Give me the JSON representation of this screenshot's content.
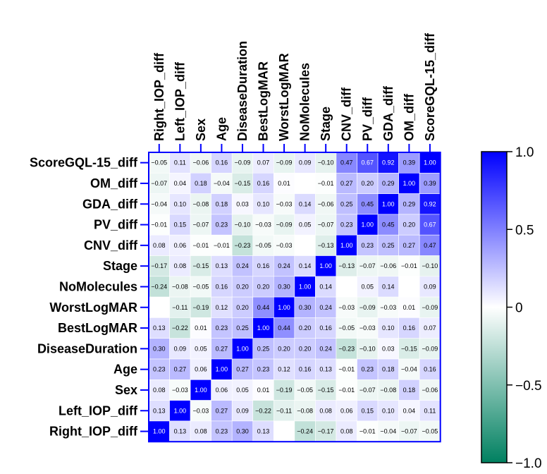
{
  "chart_data": {
    "type": "heatmap",
    "columns": [
      "Right_IOP_diff",
      "Left_IOP_diff",
      "Sex",
      "Age",
      "DiseaseDuration",
      "BestLogMAR",
      "WorstLogMAR",
      "NoMolecules",
      "Stage",
      "CNV_diff",
      "PV_diff",
      "GDA_diff",
      "OM_diff",
      "ScoreGQL-15_diff"
    ],
    "rows": [
      "ScoreGQL-15_diff",
      "OM_diff",
      "GDA_diff",
      "PV_diff",
      "CNV_diff",
      "Stage",
      "NoMolecules",
      "WorstLogMAR",
      "BestLogMAR",
      "DiseaseDuration",
      "Age",
      "Sex",
      "Left_IOP_diff",
      "Right_IOP_diff"
    ],
    "values": [
      [
        -0.05,
        0.11,
        -0.06,
        0.16,
        -0.09,
        0.07,
        -0.09,
        0.09,
        -0.1,
        0.47,
        0.67,
        0.92,
        0.39,
        1.0
      ],
      [
        -0.07,
        0.04,
        0.18,
        -0.04,
        -0.15,
        0.16,
        0.01,
        null,
        -0.01,
        0.27,
        0.2,
        0.29,
        1.0,
        0.39
      ],
      [
        -0.04,
        0.1,
        -0.08,
        0.18,
        0.03,
        0.1,
        -0.03,
        0.14,
        -0.06,
        0.25,
        0.45,
        1.0,
        0.29,
        0.92
      ],
      [
        -0.01,
        0.15,
        -0.07,
        0.23,
        -0.1,
        -0.03,
        -0.09,
        0.05,
        -0.07,
        0.23,
        1.0,
        0.45,
        0.2,
        0.67
      ],
      [
        0.08,
        0.06,
        -0.01,
        -0.01,
        -0.23,
        -0.05,
        -0.03,
        null,
        -0.13,
        1.0,
        0.23,
        0.25,
        0.27,
        0.47
      ],
      [
        -0.17,
        0.08,
        -0.15,
        0.13,
        0.24,
        0.16,
        0.24,
        0.14,
        1.0,
        -0.13,
        -0.07,
        -0.06,
        -0.01,
        -0.1
      ],
      [
        -0.24,
        -0.08,
        -0.05,
        0.16,
        0.2,
        0.2,
        0.3,
        1.0,
        0.14,
        null,
        0.05,
        0.14,
        null,
        0.09
      ],
      [
        null,
        -0.11,
        -0.19,
        0.12,
        0.2,
        0.44,
        1.0,
        0.3,
        0.24,
        -0.03,
        -0.09,
        -0.03,
        0.01,
        -0.09
      ],
      [
        0.13,
        -0.22,
        0.01,
        0.23,
        0.25,
        1.0,
        0.44,
        0.2,
        0.16,
        -0.05,
        -0.03,
        0.1,
        0.16,
        0.07
      ],
      [
        0.3,
        0.09,
        0.05,
        0.27,
        1.0,
        0.25,
        0.2,
        0.2,
        0.24,
        -0.23,
        -0.1,
        0.03,
        -0.15,
        -0.09
      ],
      [
        0.23,
        0.27,
        0.06,
        1.0,
        0.27,
        0.23,
        0.12,
        0.16,
        0.13,
        -0.01,
        0.23,
        0.18,
        -0.04,
        0.16
      ],
      [
        0.08,
        -0.03,
        1.0,
        0.06,
        0.05,
        0.01,
        -0.19,
        -0.05,
        -0.15,
        -0.01,
        -0.07,
        -0.08,
        0.18,
        -0.06
      ],
      [
        0.13,
        1.0,
        -0.03,
        0.27,
        0.09,
        -0.22,
        -0.11,
        -0.08,
        0.08,
        0.06,
        0.15,
        0.1,
        0.04,
        0.11
      ],
      [
        1.0,
        0.13,
        0.08,
        0.23,
        0.3,
        0.13,
        null,
        -0.24,
        -0.17,
        0.08,
        -0.01,
        -0.04,
        -0.07,
        -0.05
      ]
    ],
    "colorbar": {
      "range": [
        -1.0,
        1.0
      ],
      "ticks": [
        "1.0",
        "0.5",
        "0",
        "−0.5",
        "−1.0"
      ],
      "tick_values": [
        1.0,
        0.5,
        0,
        -0.5,
        -1.0
      ]
    },
    "colors": {
      "positive": "#0000ff",
      "negative": "#008060",
      "zero": "#ffffff",
      "frame": "#0000ff"
    }
  }
}
